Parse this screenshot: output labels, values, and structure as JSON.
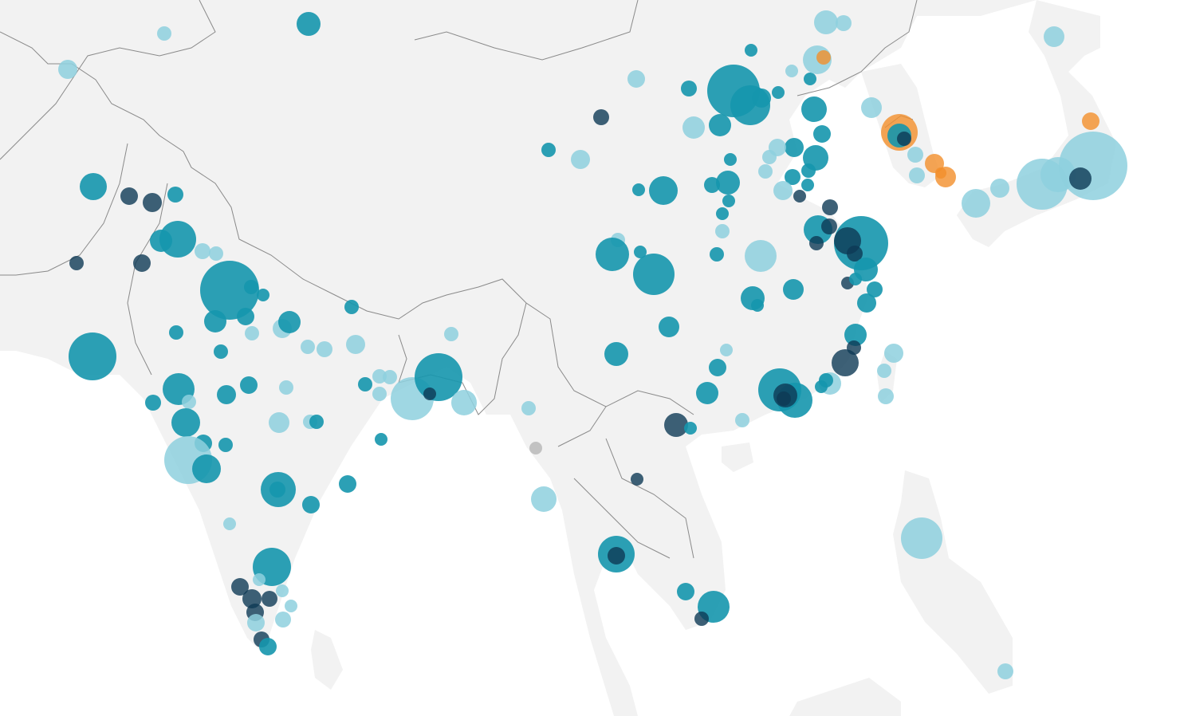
{
  "map": {
    "region": "Asia",
    "colors": {
      "background": "#ffffff",
      "land": "#f2f2f2",
      "border": "#8a8a8a",
      "teal": "#1596ad",
      "light_blue": "#8ed0de",
      "dark_navy": "#0e3a55",
      "orange": "#f28e2b",
      "gray": "#bdbdbd"
    },
    "marker_categories": [
      "teal",
      "light_blue",
      "dark_navy",
      "orange",
      "gray"
    ]
  }
}
